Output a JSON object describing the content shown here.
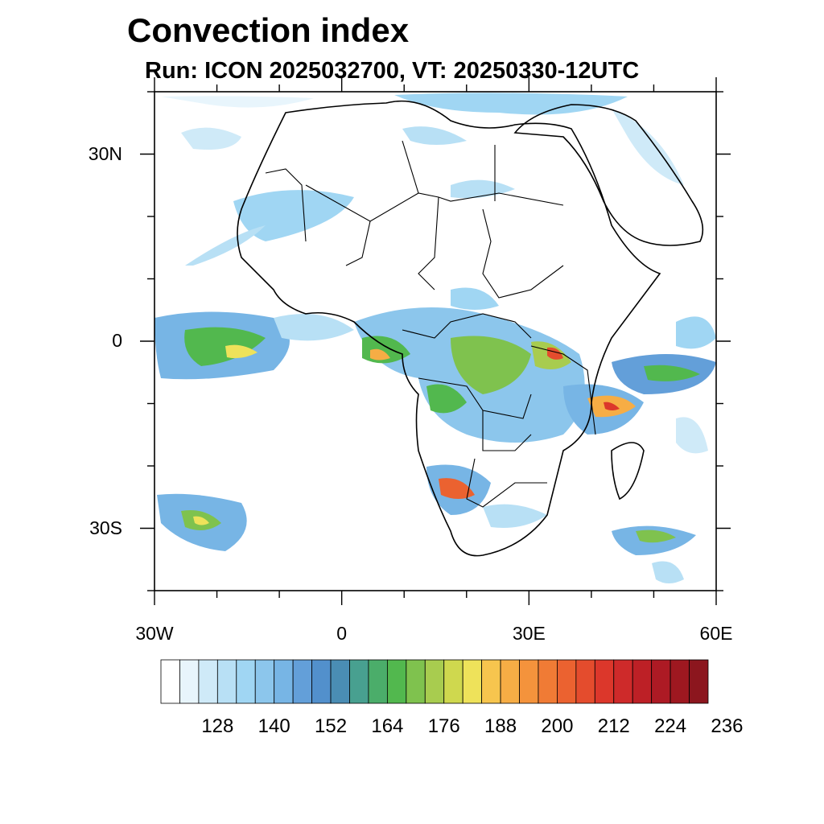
{
  "title": "Convection index",
  "subtitle": "Run: ICON 2025032700,  VT: 20250330-12UTC",
  "map": {
    "region": "Africa",
    "lon_range": [
      -30,
      60
    ],
    "lat_range": [
      -40,
      40
    ],
    "y_ticks": [
      {
        "label": "30N",
        "lat": 30
      },
      {
        "label": "0",
        "lat": 0
      },
      {
        "label": "30S",
        "lat": -30
      }
    ],
    "x_ticks": [
      {
        "label": "30W",
        "lon": -30
      },
      {
        "label": "0",
        "lon": 0
      },
      {
        "label": "30E",
        "lon": 30
      },
      {
        "label": "60E",
        "lon": 60
      }
    ]
  },
  "colorbar": {
    "labels": [
      "128",
      "140",
      "152",
      "164",
      "176",
      "188",
      "200",
      "212",
      "224",
      "236"
    ],
    "colors": [
      "#ffffff",
      "#e8f5fc",
      "#cfeaf8",
      "#b8e0f5",
      "#a0d6f3",
      "#8cc6ec",
      "#77b5e5",
      "#639fd9",
      "#5290cc",
      "#4a8db4",
      "#48a090",
      "#4bad6a",
      "#52b84e",
      "#7fc24e",
      "#a8cc4f",
      "#cfd84e",
      "#eee25a",
      "#f7c54e",
      "#f6ad45",
      "#f4933c",
      "#f07b35",
      "#eb6230",
      "#e44c2d",
      "#dc372b",
      "#ce2a2a",
      "#bd2026",
      "#ad1a24",
      "#9e1820",
      "#8c161e"
    ]
  }
}
